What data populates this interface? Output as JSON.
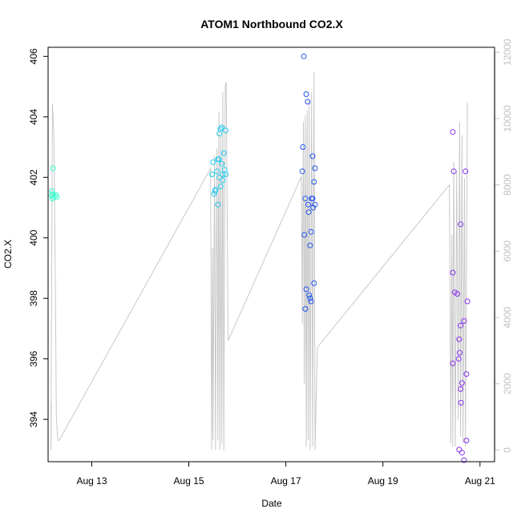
{
  "chart_data": {
    "type": "scatter",
    "title": "ATOM1 Northbound CO2.X",
    "xlabel": "Date",
    "ylabel": "CO2.X",
    "x_unit": "day-of-August",
    "xlim": [
      12.1,
      21.3
    ],
    "ylim": [
      392.6,
      406.3
    ],
    "x_ticks": [
      {
        "value": 13,
        "label": "Aug 13"
      },
      {
        "value": 15,
        "label": "Aug 15"
      },
      {
        "value": 17,
        "label": "Aug 17"
      },
      {
        "value": 19,
        "label": "Aug 19"
      },
      {
        "value": 21,
        "label": "Aug 21"
      }
    ],
    "y_ticks": [
      394,
      396,
      398,
      400,
      402,
      404,
      406
    ],
    "y2lim": [
      -350,
      12150
    ],
    "y2_ticks": [
      0,
      2000,
      4000,
      6000,
      8000,
      10000,
      12000
    ],
    "grid": false,
    "legend": "none",
    "colors": {
      "secondary_line": "#c8c8c8",
      "right_axis": "#c0c0c0",
      "axis": "#000000"
    },
    "series": [
      {
        "color": "#33ffcc",
        "points": [
          [
            12.2,
            402.3
          ],
          [
            12.18,
            401.55
          ],
          [
            12.2,
            401.45
          ],
          [
            12.17,
            401.4
          ],
          [
            12.22,
            401.35
          ],
          [
            12.19,
            401.3
          ],
          [
            12.26,
            401.42
          ],
          [
            12.28,
            401.35
          ]
        ]
      },
      {
        "color": "#22ccee",
        "points": [
          [
            15.48,
            402.1
          ],
          [
            15.5,
            402.5
          ],
          [
            15.52,
            401.45
          ],
          [
            15.54,
            401.55
          ],
          [
            15.55,
            401.6
          ],
          [
            15.58,
            402.2
          ],
          [
            15.6,
            402.6
          ],
          [
            15.62,
            402.6
          ],
          [
            15.6,
            401.1
          ],
          [
            15.63,
            403.45
          ],
          [
            15.65,
            403.6
          ],
          [
            15.66,
            401.7
          ],
          [
            15.68,
            403.65
          ],
          [
            15.68,
            402.45
          ],
          [
            15.7,
            402.1
          ],
          [
            15.7,
            401.9
          ],
          [
            15.72,
            402.8
          ],
          [
            15.74,
            402.25
          ],
          [
            15.76,
            402.1
          ],
          [
            15.76,
            403.55
          ],
          [
            15.63,
            402.0
          ]
        ]
      },
      {
        "color": "#2255ee",
        "points": [
          [
            17.37,
            406.0
          ],
          [
            17.35,
            403.0
          ],
          [
            17.34,
            402.2
          ],
          [
            17.42,
            404.75
          ],
          [
            17.45,
            404.5
          ],
          [
            17.4,
            401.3
          ],
          [
            17.46,
            401.1
          ],
          [
            17.47,
            400.85
          ],
          [
            17.38,
            400.1
          ],
          [
            17.5,
            399.75
          ],
          [
            17.52,
            400.2
          ],
          [
            17.55,
            402.7
          ],
          [
            17.6,
            402.3
          ],
          [
            17.58,
            401.85
          ],
          [
            17.53,
            401.3
          ],
          [
            17.55,
            401.3
          ],
          [
            17.6,
            401.1
          ],
          [
            17.56,
            401.0
          ],
          [
            17.42,
            398.3
          ],
          [
            17.48,
            398.1
          ],
          [
            17.5,
            398.0
          ],
          [
            17.52,
            397.9
          ],
          [
            17.58,
            398.5
          ],
          [
            17.4,
            397.65
          ]
        ]
      },
      {
        "color": "#8833ee",
        "points": [
          [
            20.44,
            403.5
          ],
          [
            20.46,
            402.2
          ],
          [
            20.44,
            398.85
          ],
          [
            20.48,
            398.2
          ],
          [
            20.53,
            398.15
          ],
          [
            20.6,
            400.45
          ],
          [
            20.7,
            402.2
          ],
          [
            20.6,
            397.1
          ],
          [
            20.57,
            396.65
          ],
          [
            20.58,
            396.2
          ],
          [
            20.56,
            396.0
          ],
          [
            20.44,
            395.85
          ],
          [
            20.72,
            395.5
          ],
          [
            20.63,
            395.2
          ],
          [
            20.6,
            395.0
          ],
          [
            20.61,
            394.55
          ],
          [
            20.72,
            393.3
          ],
          [
            20.57,
            393.0
          ],
          [
            20.63,
            392.9
          ],
          [
            20.67,
            392.65
          ],
          [
            20.74,
            397.9
          ],
          [
            20.67,
            397.25
          ]
        ]
      }
    ],
    "secondary_series": {
      "axis": "right",
      "color": "#c8c8c8",
      "points": [
        [
          12.17,
          1400
        ],
        [
          12.16,
          0
        ],
        [
          12.19,
          10450
        ],
        [
          12.22,
          9500
        ],
        [
          12.25,
          5000
        ],
        [
          12.27,
          1000
        ],
        [
          12.3,
          300
        ],
        [
          12.33,
          300
        ],
        [
          15.45,
          8500
        ],
        [
          15.47,
          0
        ],
        [
          15.49,
          6100
        ],
        [
          15.5,
          300
        ],
        [
          15.53,
          8900
        ],
        [
          15.55,
          0
        ],
        [
          15.58,
          9100
        ],
        [
          15.6,
          300
        ],
        [
          15.62,
          10200
        ],
        [
          15.64,
          0
        ],
        [
          15.66,
          9500
        ],
        [
          15.68,
          200
        ],
        [
          15.7,
          10800
        ],
        [
          15.72,
          0
        ],
        [
          15.75,
          11000
        ],
        [
          15.77,
          11100
        ],
        [
          15.81,
          3300
        ],
        [
          17.32,
          8250
        ],
        [
          17.34,
          3800
        ],
        [
          17.36,
          9900
        ],
        [
          17.38,
          2000
        ],
        [
          17.4,
          10100
        ],
        [
          17.42,
          100
        ],
        [
          17.44,
          10250
        ],
        [
          17.46,
          300
        ],
        [
          17.48,
          10500
        ],
        [
          17.5,
          0
        ],
        [
          17.53,
          10800
        ],
        [
          17.55,
          100
        ],
        [
          17.58,
          11400
        ],
        [
          17.6,
          0
        ],
        [
          17.65,
          3100
        ],
        [
          20.37,
          8000
        ],
        [
          20.4,
          200
        ],
        [
          20.42,
          6500
        ],
        [
          20.44,
          100
        ],
        [
          20.46,
          8700
        ],
        [
          20.49,
          100
        ],
        [
          20.52,
          8400
        ],
        [
          20.55,
          900
        ],
        [
          20.58,
          9900
        ],
        [
          20.6,
          400
        ],
        [
          20.63,
          9500
        ],
        [
          20.65,
          200
        ],
        [
          20.68,
          8200
        ],
        [
          20.7,
          100
        ],
        [
          20.74,
          10500
        ]
      ]
    }
  }
}
